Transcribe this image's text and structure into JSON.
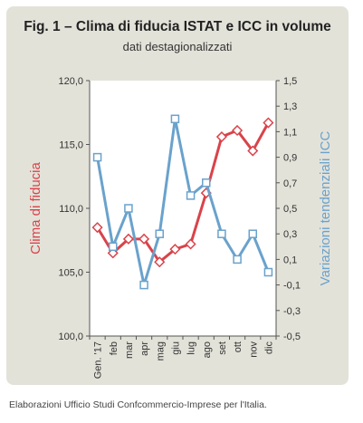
{
  "title": "Fig. 1 – Clima di fiducia ISTAT e ICC in volume",
  "subtitle": "dati destagionalizzati",
  "caption": "Elaborazioni Ufficio Studi Confcommercio-Imprese per l'Italia.",
  "chart_data": {
    "type": "line",
    "categories": [
      "Gen. '17",
      "feb",
      "mar",
      "apr",
      "mag",
      "giu",
      "lug",
      "ago",
      "set",
      "ott",
      "nov",
      "dic"
    ],
    "left_axis": {
      "label": "Clima di fiducia",
      "ylim": [
        100,
        120
      ],
      "ticks": [
        "100,0",
        "105,0",
        "110,0",
        "115,0",
        "120,0"
      ]
    },
    "right_axis": {
      "label": "Variazioni tendenziali ICC",
      "ylim": [
        -0.5,
        1.5
      ],
      "ticks": [
        "-0,5",
        "-0,3",
        "-0,1",
        "0,1",
        "0,3",
        "0,5",
        "0,7",
        "0,9",
        "1,1",
        "1,3",
        "1,5"
      ]
    },
    "grid": false,
    "series": [
      {
        "axis": "left",
        "color": "#d9434a",
        "values": [
          108.5,
          106.5,
          107.6,
          107.6,
          105.8,
          106.8,
          107.2,
          111.2,
          115.6,
          116.1,
          114.5,
          116.7
        ]
      },
      {
        "axis": "right",
        "color": "#6aa2cc",
        "values": [
          0.9,
          0.2,
          0.5,
          -0.1,
          0.3,
          1.2,
          0.6,
          0.7,
          0.3,
          0.1,
          0.3,
          0.0
        ]
      }
    ]
  }
}
